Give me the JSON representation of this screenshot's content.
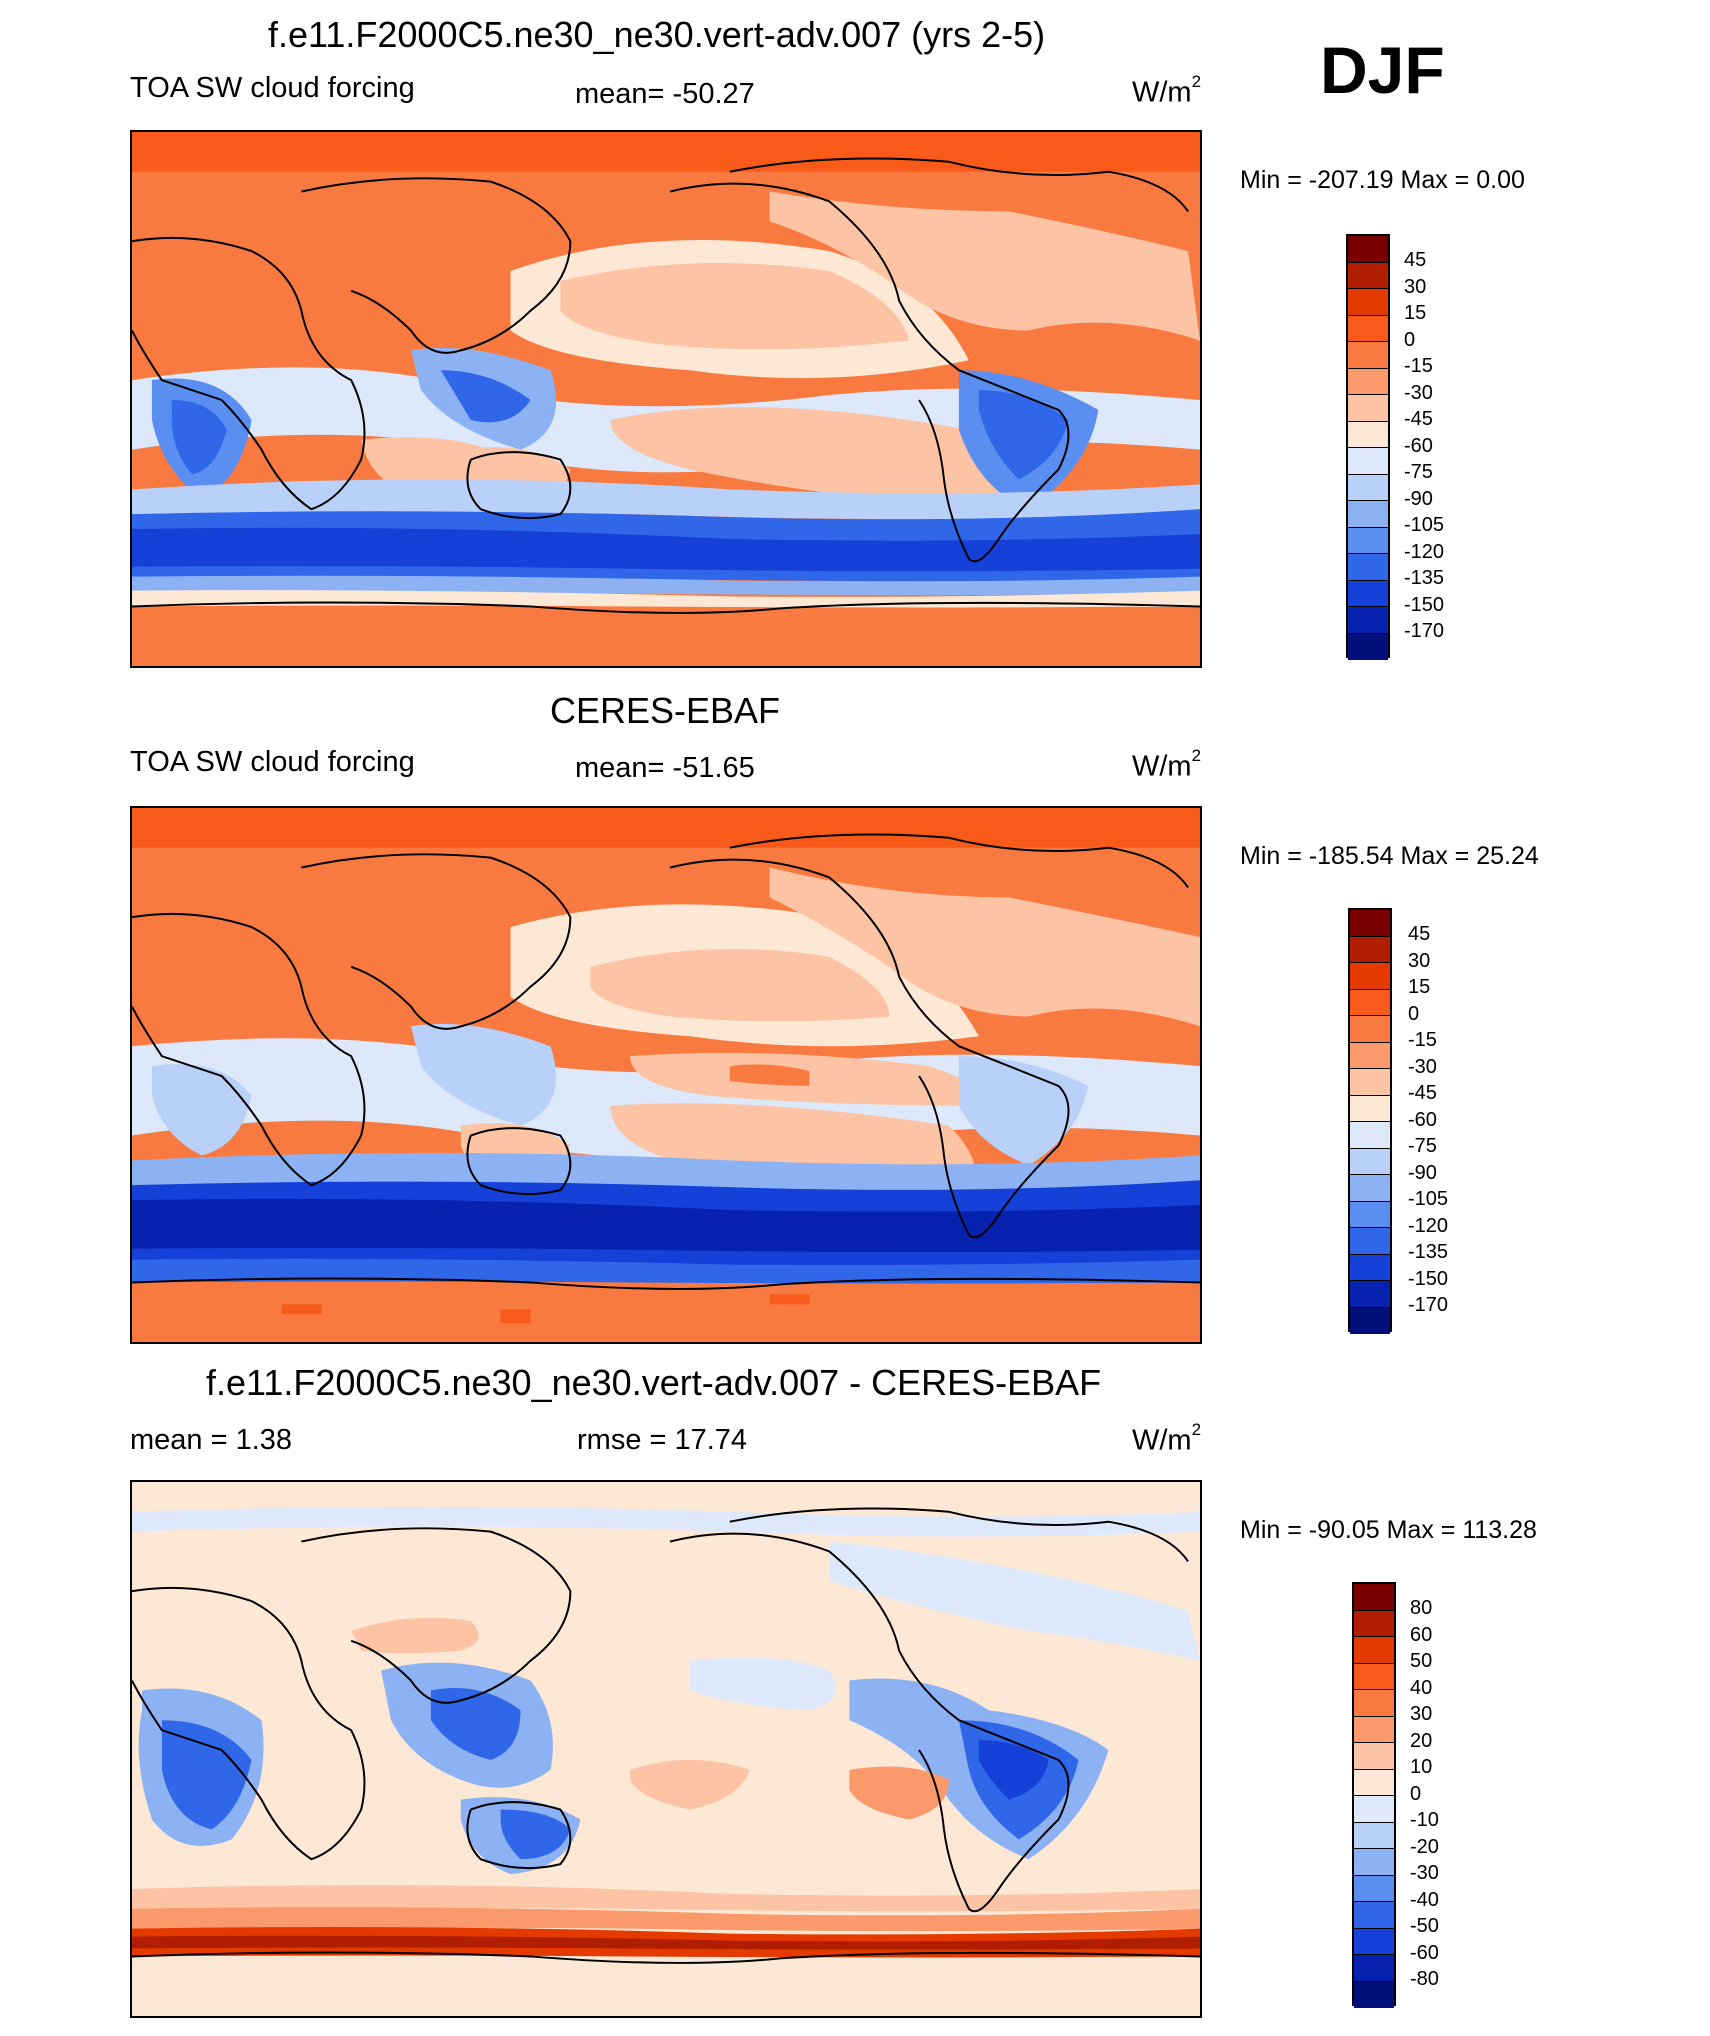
{
  "season": "DJF",
  "panels": [
    {
      "title": "f.e11.F2000C5.ne30_ne30.vert-adv.007 (yrs 2-5)",
      "left_label": "TOA SW cloud forcing",
      "center_label": "mean= -50.27",
      "units": "W/m",
      "units_exp": "2",
      "minmax": "Min = -207.19 Max =   0.00",
      "colorbar": {
        "labels": [
          "45",
          "30",
          "15",
          "0",
          "-15",
          "-30",
          "-45",
          "-60",
          "-75",
          "-90",
          "-105",
          "-120",
          "-135",
          "-150",
          "-170"
        ],
        "colors": [
          "#7a0000",
          "#b01d00",
          "#e43a00",
          "#f85a1a",
          "#f87a40",
          "#fa9a6a",
          "#fcc4a4",
          "#fde8d6",
          "#dde9fb",
          "#b9d1f8",
          "#8db2f4",
          "#5a8ef0",
          "#3067e8",
          "#1541d8",
          "#0822b0",
          "#000f7a"
        ]
      }
    },
    {
      "title": "CERES-EBAF",
      "left_label": "TOA SW cloud forcing",
      "center_label": "mean= -51.65",
      "units": "W/m",
      "units_exp": "2",
      "minmax": "Min = -185.54 Max =  25.24",
      "colorbar": {
        "labels": [
          "45",
          "30",
          "15",
          "0",
          "-15",
          "-30",
          "-45",
          "-60",
          "-75",
          "-90",
          "-105",
          "-120",
          "-135",
          "-150",
          "-170"
        ],
        "colors": [
          "#7a0000",
          "#b01d00",
          "#e43a00",
          "#f85a1a",
          "#f87a40",
          "#fa9a6a",
          "#fcc4a4",
          "#fde8d6",
          "#dde9fb",
          "#b9d1f8",
          "#8db2f4",
          "#5a8ef0",
          "#3067e8",
          "#1541d8",
          "#0822b0",
          "#000f7a"
        ]
      }
    },
    {
      "title": "f.e11.F2000C5.ne30_ne30.vert-adv.007 - CERES-EBAF",
      "left_label": "mean =   1.38",
      "center_label": "rmse =  17.74",
      "units": "W/m",
      "units_exp": "2",
      "minmax": "Min = -90.05 Max = 113.28",
      "colorbar": {
        "labels": [
          "80",
          "60",
          "50",
          "40",
          "30",
          "20",
          "10",
          "0",
          "-10",
          "-20",
          "-30",
          "-40",
          "-50",
          "-60",
          "-80"
        ],
        "colors": [
          "#7a0000",
          "#b01d00",
          "#e43a00",
          "#f85a1a",
          "#f87a40",
          "#fa9a6a",
          "#fcc4a4",
          "#fde8d6",
          "#dde9fb",
          "#b9d1f8",
          "#8db2f4",
          "#5a8ef0",
          "#3067e8",
          "#1541d8",
          "#0822b0",
          "#000f7a"
        ]
      }
    }
  ]
}
